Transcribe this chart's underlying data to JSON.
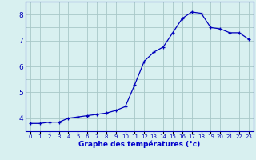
{
  "hours": [
    0,
    1,
    2,
    3,
    4,
    5,
    6,
    7,
    8,
    9,
    10,
    11,
    12,
    13,
    14,
    15,
    16,
    17,
    18,
    19,
    20,
    21,
    22,
    23
  ],
  "temperatures": [
    3.8,
    3.8,
    3.85,
    3.85,
    4.0,
    4.05,
    4.1,
    4.15,
    4.2,
    4.3,
    4.45,
    5.3,
    6.2,
    6.55,
    6.75,
    7.3,
    7.85,
    8.1,
    8.05,
    7.5,
    7.45,
    7.3,
    7.3,
    7.05
  ],
  "line_color": "#0000bb",
  "marker_color": "#0000bb",
  "background_color": "#d8f0f0",
  "grid_color": "#a8c8c8",
  "xlabel": "Graphe des températures (°c)",
  "xlabel_color": "#0000cc",
  "ylim": [
    3.5,
    8.5
  ],
  "xlim": [
    -0.5,
    23.5
  ],
  "yticks": [
    4,
    5,
    6,
    7,
    8
  ],
  "ytick_labels": [
    "4",
    "5",
    "6",
    "7",
    "8"
  ],
  "xtick_labels": [
    "0",
    "1",
    "2",
    "3",
    "4",
    "5",
    "6",
    "7",
    "8",
    "9",
    "10",
    "11",
    "12",
    "13",
    "14",
    "15",
    "16",
    "17",
    "18",
    "19",
    "20",
    "21",
    "22",
    "23"
  ],
  "tick_color": "#0000bb",
  "spine_color": "#0000bb"
}
